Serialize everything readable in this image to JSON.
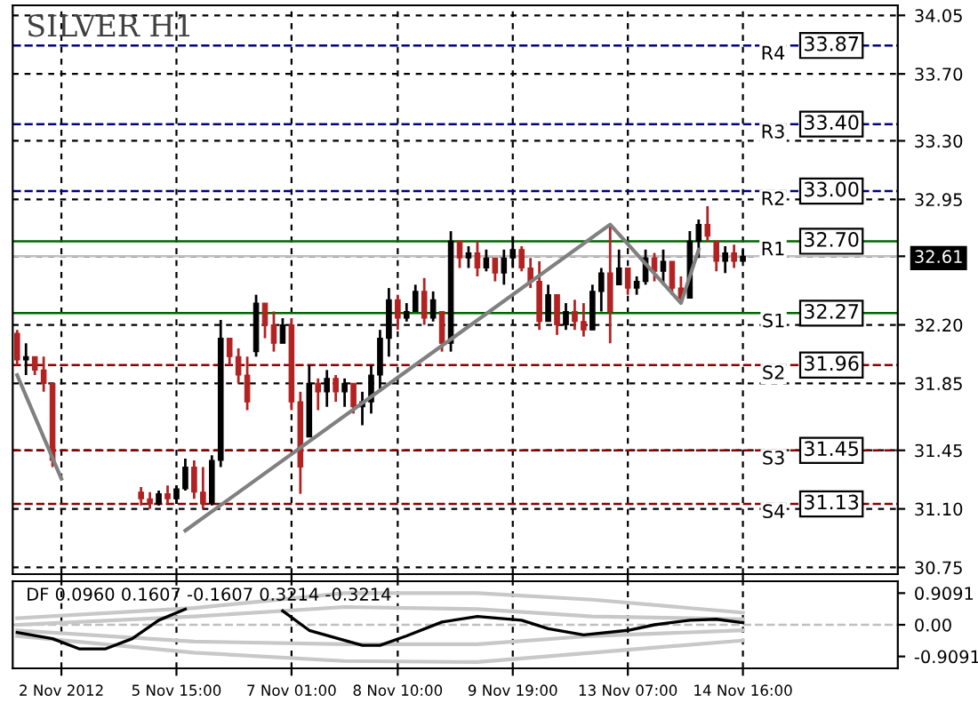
{
  "chart_data": [
    {
      "type": "candlestick",
      "title": "SILVER H1",
      "categories": [
        null,
        null,
        null,
        null,
        null,
        null,
        null,
        null,
        null,
        null,
        null,
        null,
        null,
        null,
        null,
        null,
        null,
        null,
        null,
        null,
        null,
        null,
        null,
        null,
        null,
        null,
        null,
        null,
        null,
        null,
        null,
        null,
        null,
        null,
        null,
        null,
        null,
        null,
        null,
        null,
        null,
        null,
        null,
        null,
        null,
        null,
        null,
        null,
        null,
        null,
        null,
        null,
        null,
        null,
        null,
        null,
        null,
        null,
        null,
        null,
        null,
        null,
        null,
        null,
        null,
        null,
        null,
        null,
        null,
        null,
        null,
        null,
        null,
        null,
        null,
        null,
        null,
        null,
        null,
        null,
        null,
        null,
        null,
        null,
        null,
        null,
        null,
        null,
        null,
        null,
        null,
        null,
        null,
        null,
        null,
        null,
        null,
        null,
        null,
        null
      ],
      "ohlc": [
        [
          32.15,
          32.17,
          31.96,
          31.99
        ],
        [
          31.99,
          32.09,
          31.9,
          32.01
        ],
        [
          32.01,
          32.01,
          31.9,
          31.93
        ],
        [
          31.93,
          32.01,
          31.8,
          31.85
        ],
        [
          31.85,
          31.85,
          31.35,
          31.39
        ],
        null,
        null,
        null,
        null,
        null,
        null,
        null,
        null,
        null,
        [
          31.2,
          31.23,
          31.12,
          31.16
        ],
        [
          31.16,
          31.2,
          31.1,
          31.13
        ],
        [
          31.13,
          31.21,
          31.12,
          31.19
        ],
        [
          31.19,
          31.24,
          31.13,
          31.16
        ],
        [
          31.16,
          31.24,
          31.13,
          31.22
        ],
        [
          31.22,
          31.4,
          31.21,
          31.35
        ],
        [
          31.35,
          31.39,
          31.16,
          31.2
        ],
        [
          31.2,
          31.35,
          31.1,
          31.13
        ],
        [
          31.13,
          31.42,
          31.12,
          31.39
        ],
        [
          31.39,
          32.23,
          31.35,
          32.12
        ],
        [
          32.12,
          32.12,
          31.96,
          32.01
        ],
        [
          32.01,
          32.06,
          31.85,
          31.9
        ],
        [
          31.9,
          32.01,
          31.69,
          31.74
        ],
        [
          32.04,
          32.38,
          32.01,
          32.33
        ],
        [
          32.33,
          32.33,
          32.12,
          32.2
        ],
        [
          32.2,
          32.28,
          32.04,
          32.09
        ],
        [
          32.09,
          32.24,
          32.09,
          32.2
        ],
        [
          32.2,
          32.24,
          31.69,
          31.74
        ],
        [
          31.74,
          31.8,
          31.19,
          31.35
        ],
        [
          31.53,
          31.96,
          31.53,
          31.85
        ],
        [
          31.85,
          31.88,
          31.69,
          31.8
        ],
        [
          31.8,
          31.93,
          31.71,
          31.88
        ],
        [
          31.88,
          31.9,
          31.74,
          31.8
        ],
        [
          31.8,
          31.88,
          31.71,
          31.85
        ],
        [
          31.85,
          31.85,
          31.67,
          31.71
        ],
        [
          31.71,
          31.8,
          31.6,
          31.74
        ],
        [
          31.74,
          31.96,
          31.67,
          31.9
        ],
        [
          31.9,
          32.17,
          31.8,
          32.12
        ],
        [
          32.12,
          32.42,
          32.01,
          32.35
        ],
        [
          32.35,
          32.38,
          32.17,
          32.24
        ],
        [
          32.24,
          32.33,
          32.22,
          32.28
        ],
        [
          32.28,
          32.44,
          32.28,
          32.4
        ],
        [
          32.4,
          32.48,
          32.2,
          32.24
        ],
        [
          32.24,
          32.4,
          32.22,
          32.35
        ],
        [
          32.28,
          32.28,
          32.04,
          32.09
        ],
        [
          32.09,
          32.76,
          32.04,
          32.7
        ],
        [
          32.7,
          32.7,
          32.54,
          32.6
        ],
        [
          32.6,
          32.67,
          32.54,
          32.63
        ],
        [
          32.63,
          32.7,
          32.49,
          32.54
        ],
        [
          32.54,
          32.65,
          32.52,
          32.6
        ],
        [
          32.6,
          32.6,
          32.46,
          32.51
        ],
        [
          32.51,
          32.65,
          32.44,
          32.6
        ],
        [
          32.6,
          32.73,
          32.54,
          32.65
        ],
        [
          32.65,
          32.67,
          32.52,
          32.54
        ],
        [
          32.54,
          32.6,
          32.42,
          32.46
        ],
        [
          32.46,
          32.58,
          32.17,
          32.22
        ],
        [
          32.22,
          32.44,
          32.22,
          32.38
        ],
        [
          32.38,
          32.38,
          32.14,
          32.2
        ],
        [
          32.2,
          32.33,
          32.17,
          32.28
        ],
        [
          32.28,
          32.35,
          32.17,
          32.22
        ],
        [
          32.22,
          32.33,
          32.13,
          32.17
        ],
        [
          32.17,
          32.44,
          32.17,
          32.4
        ],
        [
          32.4,
          32.54,
          32.28,
          32.51
        ],
        [
          32.51,
          32.8,
          32.09,
          32.28
        ],
        [
          32.44,
          32.65,
          32.44,
          32.54
        ],
        [
          32.54,
          32.54,
          32.38,
          32.42
        ],
        [
          32.42,
          32.49,
          32.38,
          32.46
        ],
        [
          32.46,
          32.65,
          32.44,
          32.6
        ],
        [
          32.6,
          32.63,
          32.46,
          32.52
        ],
        [
          32.52,
          32.65,
          32.44,
          32.58
        ],
        [
          32.58,
          32.58,
          32.38,
          32.42
        ],
        [
          32.42,
          32.49,
          32.33,
          32.36
        ],
        [
          32.36,
          32.76,
          32.36,
          32.7
        ],
        [
          32.7,
          32.83,
          32.6,
          32.8
        ],
        [
          32.8,
          32.91,
          32.7,
          32.73
        ],
        [
          32.7,
          32.7,
          32.52,
          32.58
        ],
        [
          32.58,
          32.67,
          32.51,
          32.63
        ],
        [
          32.63,
          32.68,
          32.54,
          32.58
        ],
        [
          32.58,
          32.65,
          32.58,
          32.61
        ],
        null,
        null,
        null,
        null,
        null,
        null,
        null,
        null,
        null,
        null,
        null,
        null,
        null,
        null,
        null,
        null,
        null
      ],
      "series": [
        {
          "type": "line",
          "color": "#808080",
          "values": [
            31.9,
            null,
            null,
            null,
            null,
            31.28,
            null,
            null,
            null,
            null,
            null,
            null,
            null,
            null,
            null,
            null,
            null,
            null,
            null,
            null,
            null,
            null,
            null,
            null,
            null,
            null,
            null,
            null,
            null,
            null,
            null,
            null,
            null,
            null,
            null,
            null,
            null,
            null,
            null,
            null,
            null,
            null,
            null,
            null,
            null,
            null,
            null,
            null,
            null,
            null,
            null,
            null,
            null,
            null,
            null,
            null,
            null,
            null,
            null,
            null,
            null,
            null,
            null,
            null,
            null,
            null,
            null,
            null,
            null,
            null,
            null,
            null,
            null,
            null,
            null,
            null,
            null,
            null,
            null,
            null,
            null,
            null,
            null,
            null,
            null,
            null,
            null,
            null,
            null,
            null,
            null,
            null,
            null,
            null,
            null,
            null,
            null,
            null,
            null,
            null
          ]
        },
        {
          "type": "line",
          "color": "#808080",
          "values": [
            null,
            null,
            null,
            null,
            null,
            null,
            null,
            null,
            null,
            null,
            null,
            null,
            null,
            null,
            null,
            null,
            null,
            null,
            null,
            30.97,
            null,
            null,
            null,
            null,
            null,
            null,
            null,
            null,
            null,
            null,
            null,
            null,
            null,
            null,
            null,
            null,
            null,
            null,
            null,
            null,
            null,
            null,
            null,
            null,
            null,
            null,
            null,
            null,
            null,
            null,
            null,
            null,
            null,
            null,
            null,
            null,
            null,
            null,
            null,
            null,
            null,
            null,
            null,
            null,
            null,
            null,
            null,
            32.8,
            null,
            null,
            null,
            null,
            null,
            null,
            null,
            32.33,
            null,
            32.65,
            null,
            null,
            null,
            null,
            null,
            null,
            null,
            null,
            null,
            null,
            null,
            null,
            null,
            null,
            null,
            null,
            null,
            null,
            null,
            null,
            null,
            null
          ]
        }
      ],
      "ylim": [
        30.71,
        34.11
      ],
      "yticks": [
        {
          "value": 34.05,
          "label": "34.05"
        },
        {
          "value": 33.7,
          "label": "33.70"
        },
        {
          "value": 33.3,
          "label": "33.30"
        },
        {
          "value": 32.95,
          "label": "32.95"
        },
        {
          "value": 32.61,
          "label": "32.61"
        },
        {
          "value": 32.2,
          "label": "32.20"
        },
        {
          "value": 31.85,
          "label": "31.85"
        },
        {
          "value": 31.45,
          "label": "31.45"
        },
        {
          "value": 31.1,
          "label": "31.10"
        },
        {
          "value": 30.75,
          "label": "30.75"
        }
      ],
      "grid": true,
      "tick_labels": "y",
      "legend": false,
      "ref_lines": [
        {
          "axis": "y",
          "value": 33.87,
          "label": "R4",
          "color": "#000080",
          "line_style": "dashed"
        },
        {
          "axis": "y",
          "value": 33.4,
          "label": "R3",
          "color": "#000080",
          "line_style": "dashed"
        },
        {
          "axis": "y",
          "value": 33.0,
          "label": "R2",
          "color": "#000080",
          "line_style": "dashed"
        },
        {
          "axis": "y",
          "value": 32.7,
          "label": "R1",
          "color": "#006400",
          "line_style": "solid"
        },
        {
          "axis": "y",
          "value": 32.61,
          "color": "#c0c0c0",
          "line_style": "solid"
        },
        {
          "axis": "y",
          "value": 32.27,
          "label": "S1",
          "color": "#006400",
          "line_style": "solid"
        },
        {
          "axis": "y",
          "value": 31.96,
          "label": "S2",
          "color": "#8b0000",
          "line_style": "dashed"
        },
        {
          "axis": "y",
          "value": 31.45,
          "label": "S3",
          "color": "#8b0000",
          "line_style": "dashed"
        },
        {
          "axis": "y",
          "value": 31.13,
          "label": "S4",
          "color": "#8b0000",
          "line_style": "dashed"
        }
      ],
      "annotations": [
        {
          "text": "33.87",
          "y": 33.87
        },
        {
          "text": "33.40",
          "y": 33.4
        },
        {
          "text": "33.00",
          "y": 33.0
        },
        {
          "text": "32.70",
          "y": 32.7
        },
        {
          "text": "32.27",
          "y": 32.27
        },
        {
          "text": "31.96",
          "y": 31.96
        },
        {
          "text": "31.45",
          "y": 31.45
        },
        {
          "text": "31.13",
          "y": 31.13
        }
      ]
    },
    {
      "type": "line",
      "series": [
        {
          "color": "#c8c8c8",
          "values": [
            0.19,
            null,
            null,
            null,
            null,
            null,
            null,
            null,
            null,
            null,
            null,
            null,
            null,
            null,
            null,
            null,
            null,
            null,
            null,
            null,
            0.48,
            null,
            null,
            null,
            null,
            null,
            null,
            null,
            null,
            null,
            null,
            null,
            null,
            null,
            null,
            null,
            null,
            0.91,
            null,
            null,
            null,
            null,
            null,
            null,
            null,
            null,
            null,
            null,
            null,
            null,
            null,
            null,
            0.91,
            null,
            null,
            null,
            null,
            null,
            null,
            null,
            null,
            null,
            null,
            null,
            null,
            0.72,
            null,
            null,
            null,
            null,
            null,
            null,
            null,
            null,
            null,
            null,
            null,
            null,
            null,
            null,
            null,
            null,
            0.35,
            null,
            null,
            null,
            null,
            null,
            null,
            null,
            null,
            null,
            null,
            null,
            null,
            null,
            null,
            null,
            null,
            null
          ]
        },
        {
          "color": "#c8c8c8",
          "values": [
            0.0,
            null,
            null,
            null,
            null,
            null,
            null,
            null,
            null,
            null,
            null,
            null,
            null,
            null,
            null,
            null,
            null,
            null,
            null,
            null,
            0.24,
            null,
            null,
            null,
            null,
            null,
            null,
            null,
            null,
            null,
            null,
            null,
            null,
            null,
            null,
            null,
            null,
            0.51,
            null,
            null,
            null,
            null,
            null,
            null,
            null,
            null,
            null,
            null,
            null,
            null,
            null,
            null,
            0.45,
            null,
            null,
            null,
            null,
            null,
            null,
            null,
            null,
            null,
            null,
            null,
            null,
            0.24,
            null,
            null,
            null,
            null,
            null,
            null,
            null,
            null,
            null,
            null,
            null,
            null,
            null,
            null,
            null,
            null,
            0.16,
            null,
            null,
            null,
            null,
            null,
            null,
            null,
            null,
            null,
            null,
            null,
            null,
            null,
            null,
            null,
            null,
            null
          ]
        },
        {
          "color": "#c8c8c8",
          "values": [
            -0.16,
            null,
            null,
            null,
            null,
            null,
            null,
            null,
            null,
            null,
            null,
            null,
            null,
            null,
            null,
            null,
            null,
            null,
            null,
            null,
            -0.48,
            null,
            null,
            null,
            null,
            null,
            null,
            null,
            null,
            null,
            null,
            null,
            null,
            null,
            null,
            null,
            null,
            -0.56,
            null,
            null,
            null,
            null,
            null,
            null,
            null,
            null,
            null,
            null,
            null,
            null,
            null,
            null,
            -0.56,
            null,
            null,
            null,
            null,
            null,
            null,
            null,
            null,
            null,
            null,
            null,
            null,
            -0.32,
            null,
            null,
            null,
            null,
            null,
            null,
            null,
            null,
            null,
            null,
            null,
            null,
            null,
            null,
            null,
            null,
            -0.16,
            null,
            null,
            null,
            null,
            null,
            null,
            null,
            null,
            null,
            null,
            null,
            null,
            null,
            null,
            null,
            null,
            null
          ]
        },
        {
          "color": "#c8c8c8",
          "values": [
            -0.32,
            null,
            null,
            null,
            null,
            null,
            null,
            null,
            null,
            null,
            null,
            null,
            null,
            null,
            null,
            null,
            null,
            null,
            null,
            null,
            -0.8,
            null,
            null,
            null,
            null,
            null,
            null,
            null,
            null,
            null,
            null,
            null,
            null,
            null,
            null,
            null,
            null,
            -1.04,
            null,
            null,
            null,
            null,
            null,
            null,
            null,
            null,
            null,
            null,
            null,
            null,
            null,
            null,
            -1.07,
            null,
            null,
            null,
            null,
            null,
            null,
            null,
            null,
            null,
            null,
            null,
            null,
            -0.8,
            null,
            null,
            null,
            null,
            null,
            null,
            null,
            null,
            null,
            null,
            null,
            null,
            null,
            null,
            null,
            null,
            -0.45,
            null,
            null,
            null,
            null,
            null,
            null,
            null,
            null,
            null,
            null,
            null,
            null,
            null,
            null,
            null,
            null,
            null
          ]
        },
        {
          "color": "#000000",
          "values": [
            -0.22,
            null,
            null,
            null,
            -0.4,
            null,
            null,
            -0.69,
            null,
            null,
            -0.69,
            null,
            null,
            -0.4,
            null,
            null,
            0.13,
            null,
            null,
            0.45,
            null,
            null,
            null,
            null,
            null,
            null,
            null,
            null,
            null,
            null,
            null,
            null,
            null,
            null,
            null,
            null,
            null,
            null,
            null,
            null,
            null,
            null,
            null,
            null,
            null,
            null,
            null,
            null,
            null,
            null,
            null,
            null,
            null,
            null,
            null,
            null,
            null,
            null,
            null,
            null,
            null,
            null,
            null,
            null,
            null,
            null,
            null,
            null,
            null,
            null,
            null,
            null,
            null,
            null,
            null,
            null,
            null,
            null,
            null,
            null,
            null,
            null,
            null,
            null,
            null,
            null,
            null,
            null,
            null,
            null,
            null,
            null,
            null,
            null,
            null,
            null,
            null,
            null,
            null,
            null
          ]
        },
        {
          "color": "#000000",
          "values": [
            null,
            null,
            null,
            null,
            null,
            null,
            null,
            null,
            null,
            null,
            null,
            null,
            null,
            null,
            null,
            null,
            null,
            null,
            null,
            null,
            null,
            null,
            null,
            null,
            null,
            null,
            null,
            null,
            null,
            null,
            0.4,
            null,
            null,
            -0.16,
            null,
            null,
            null,
            null,
            null,
            -0.59,
            null,
            -0.59,
            null,
            null,
            -0.32,
            null,
            null,
            null,
            0.08,
            null,
            null,
            null,
            0.24,
            null,
            null,
            null,
            null,
            0.13,
            null,
            null,
            -0.11,
            null,
            null,
            null,
            -0.29,
            null,
            null,
            null,
            null,
            -0.16,
            null,
            null,
            0.0,
            null,
            null,
            null,
            0.13,
            null,
            null,
            0.16,
            null,
            null,
            0.06,
            null,
            null,
            null,
            null,
            null,
            null,
            null,
            null,
            null,
            null,
            null,
            null,
            null,
            null,
            null,
            null,
            null
          ]
        }
      ],
      "categories": [
        null,
        null,
        null,
        null,
        null,
        "2 Nov 2012",
        null,
        null,
        null,
        null,
        null,
        null,
        null,
        null,
        null,
        null,
        null,
        null,
        "5 Nov 15:00",
        null,
        null,
        null,
        null,
        null,
        null,
        null,
        null,
        null,
        null,
        null,
        null,
        "7 Nov 01:00",
        null,
        null,
        null,
        null,
        null,
        null,
        null,
        null,
        null,
        null,
        null,
        "8 Nov 10:00",
        null,
        null,
        null,
        null,
        null,
        null,
        null,
        null,
        null,
        null,
        null,
        null,
        "9 Nov 19:00",
        null,
        null,
        null,
        null,
        null,
        null,
        null,
        null,
        null,
        null,
        null,
        null,
        "13 Nov 07:00",
        null,
        null,
        null,
        null,
        null,
        null,
        null,
        null,
        null,
        null,
        null,
        null,
        "14 Nov 16:00",
        null,
        null,
        null,
        null,
        null,
        null,
        null,
        null,
        null,
        null,
        null,
        null,
        null,
        null,
        null,
        null,
        null
      ],
      "ylim": [
        -1.25,
        1.25
      ],
      "yticks": [
        {
          "value": 0.9091,
          "label": "0.9091"
        },
        {
          "value": 0,
          "label": "0.00"
        },
        {
          "value": -0.9091,
          "label": "-0.9091"
        }
      ],
      "grid": "x",
      "legend": false,
      "ref_lines": [
        {
          "axis": "y",
          "value": 0,
          "color": "#c0c0c0",
          "line_style": "dashed"
        }
      ],
      "annotations": [
        "DF 0.0960 0.1607 -0.1607 0.3214 -0.3214"
      ]
    }
  ]
}
